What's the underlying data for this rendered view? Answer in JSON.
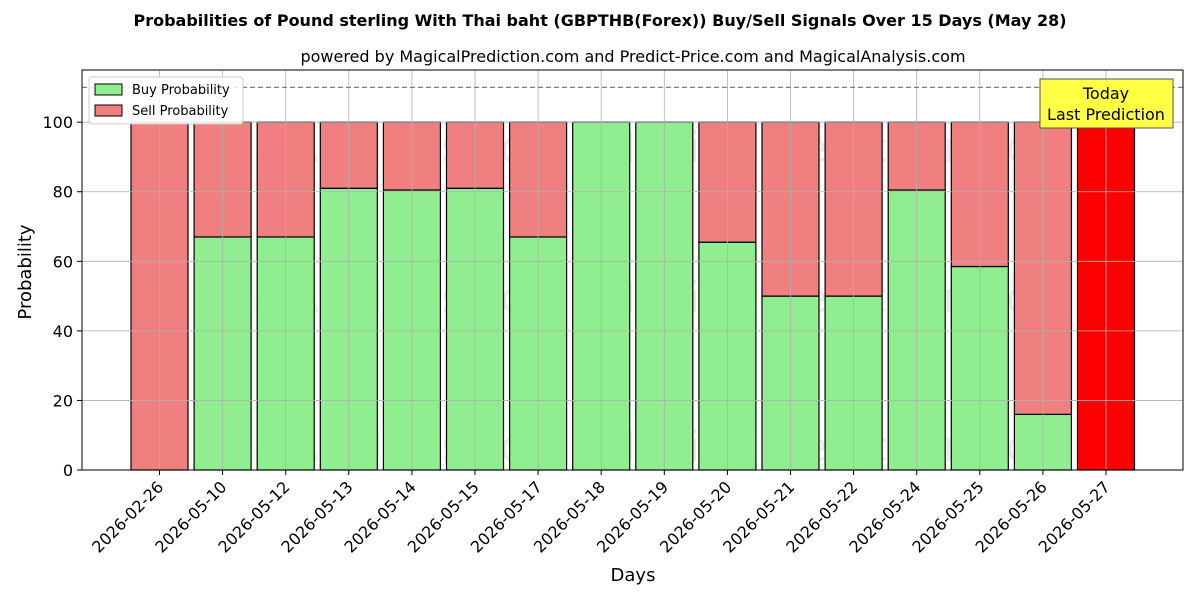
{
  "chart_data": {
    "type": "bar",
    "stacked": true,
    "title": "Probabilities of Pound sterling With Thai baht (GBPTHB(Forex)) Buy/Sell Signals Over 15 Days (May 28)",
    "subtitle": "powered by MagicalPrediction.com and Predict-Price.com and MagicalAnalysis.com",
    "xlabel": "Days",
    "ylabel": "Probability",
    "ylim": [
      0,
      115
    ],
    "yticks": [
      0,
      20,
      40,
      60,
      80,
      100
    ],
    "grid": true,
    "legend_position": "top-left",
    "categories": [
      "2026-02-26",
      "2026-05-10",
      "2026-05-12",
      "2026-05-13",
      "2026-05-14",
      "2026-05-15",
      "2026-05-17",
      "2026-05-18",
      "2026-05-19",
      "2026-05-20",
      "2026-05-21",
      "2026-05-22",
      "2026-05-24",
      "2026-05-25",
      "2026-05-26",
      "2026-05-27"
    ],
    "series": [
      {
        "name": "Buy Probability",
        "color": "#90ee90",
        "values": [
          0,
          67,
          67,
          81,
          80.5,
          81,
          67,
          100,
          100,
          65.5,
          50,
          50,
          80.5,
          58.5,
          16,
          0
        ]
      },
      {
        "name": "Sell Probability",
        "color": "#f08080",
        "values": [
          100,
          33,
          33,
          19,
          19.5,
          19,
          33,
          0,
          0,
          34.5,
          50,
          50,
          19.5,
          41.5,
          84,
          100
        ]
      }
    ],
    "highlight": {
      "category": "2026-05-27",
      "color": "#ff0000"
    },
    "reference_line": {
      "y": 110,
      "style": "dashed",
      "color": "#808080"
    },
    "annotation": {
      "lines": [
        "Today",
        "Last Prediction"
      ],
      "background": "#ffff44"
    },
    "watermarks": [
      "MagicalAnalysis.com",
      "MagicalPrediction.com"
    ]
  }
}
